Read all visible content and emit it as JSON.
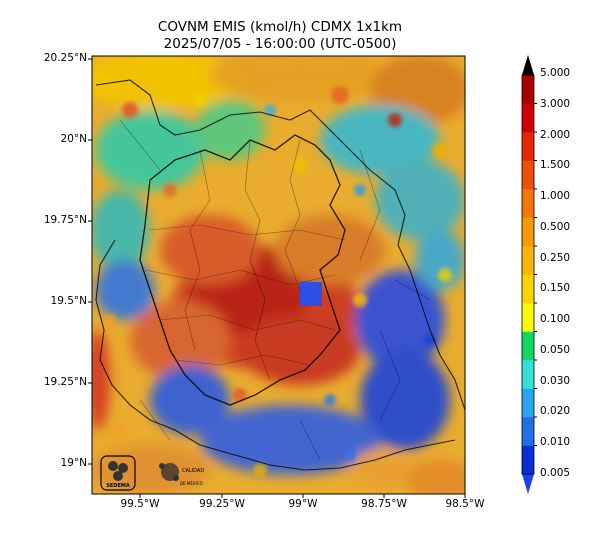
{
  "title": {
    "line1": "COVNM EMIS (kmol/h) CDMX 1x1km",
    "line2": "2025/07/05 - 16:00:00 (UTC-0500)"
  },
  "axes": {
    "y_ticks": [
      "20.25°N",
      "20°N",
      "19.75°N",
      "19.5°N",
      "19.25°N",
      "19°N"
    ],
    "x_ticks": [
      "99.5°W",
      "99.25°W",
      "99°W",
      "98.75°W",
      "98.5°W"
    ]
  },
  "colorbar": {
    "labels": [
      "5.000",
      "3.000",
      "2.000",
      "1.500",
      "1.000",
      "0.500",
      "0.250",
      "0.150",
      "0.100",
      "0.050",
      "0.030",
      "0.020",
      "0.010",
      "0.005"
    ],
    "colors": [
      "#0a2fd8",
      "#1e6fe8",
      "#2aa6ee",
      "#36e0d8",
      "#10d860",
      "#f8f800",
      "#fcd400",
      "#fcb400",
      "#fa9a00",
      "#f47800",
      "#ee5000",
      "#e82800",
      "#d40000",
      "#a80000"
    ],
    "over_color": "#000000",
    "under_color": "#1e3cff"
  },
  "logos": {
    "left": "SEDEMA",
    "right": "CALIDAD DEL AIRE CIUDAD DE MÉXICO"
  }
}
